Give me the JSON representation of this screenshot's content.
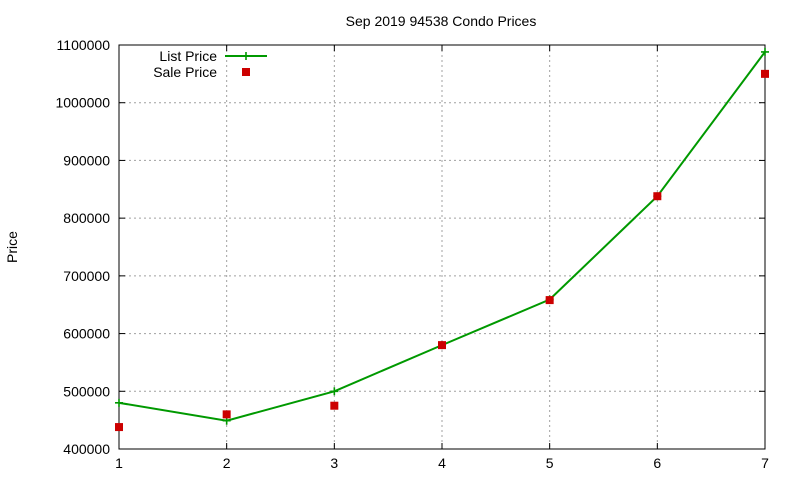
{
  "chart_data": {
    "type": "line",
    "title": "Sep 2019 94538 Condo Prices",
    "xlabel": "",
    "ylabel": "Price",
    "x": [
      1,
      2,
      3,
      4,
      5,
      6,
      7
    ],
    "xlim": [
      1,
      7
    ],
    "ylim": [
      400000,
      1100000
    ],
    "x_ticks": [
      1,
      2,
      3,
      4,
      5,
      6,
      7
    ],
    "y_ticks": [
      400000,
      500000,
      600000,
      700000,
      800000,
      900000,
      1000000,
      1100000
    ],
    "grid": true,
    "legend_position": "top-left",
    "series": [
      {
        "name": "List Price",
        "style": "line-with-plus-markers",
        "color": "#009900",
        "values": [
          480000,
          449000,
          500000,
          580000,
          659000,
          838000,
          1088000
        ]
      },
      {
        "name": "Sale Price",
        "style": "square-markers",
        "color": "#cc0000",
        "values": [
          438000,
          460000,
          475000,
          580000,
          658000,
          838000,
          1050000
        ]
      }
    ]
  }
}
